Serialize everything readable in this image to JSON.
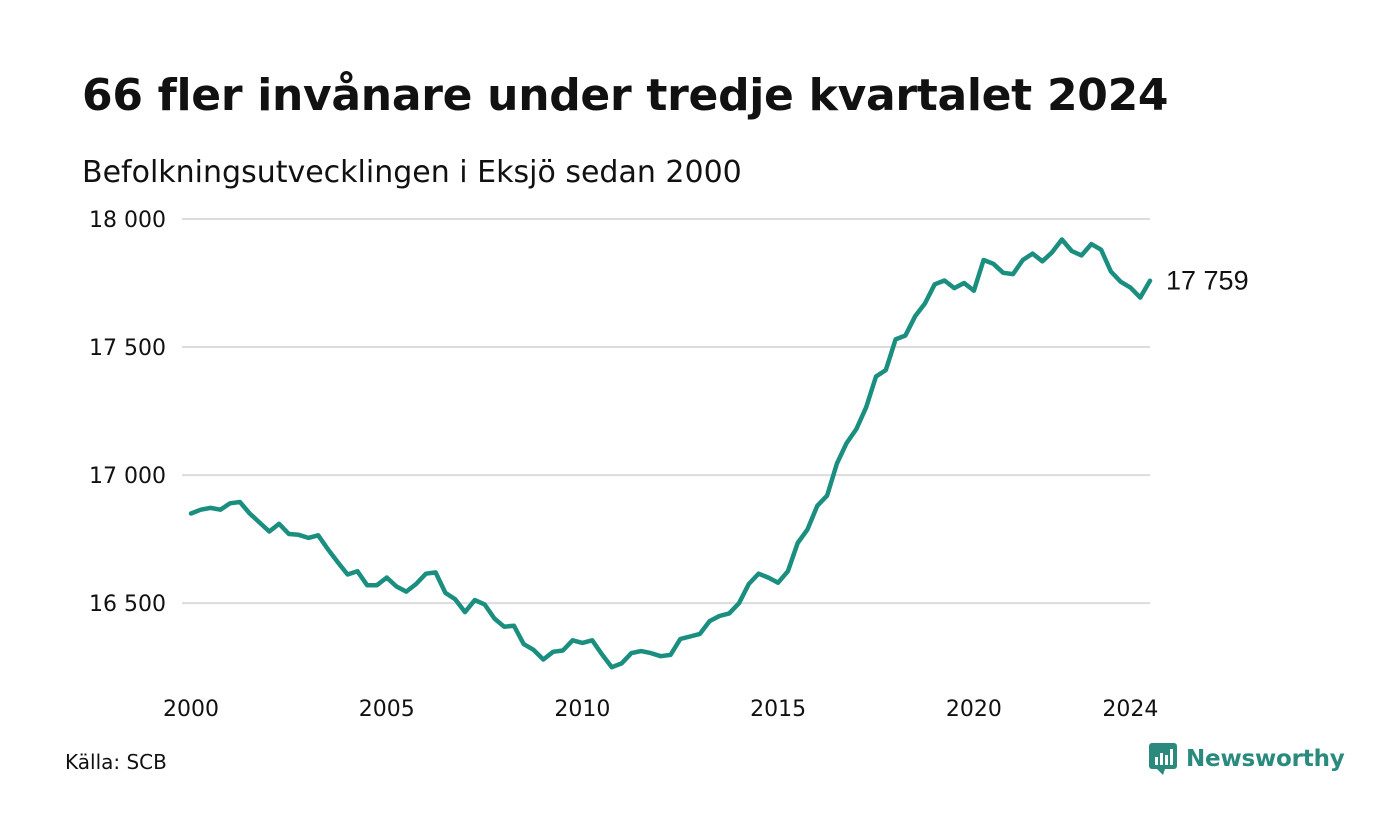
{
  "header": {
    "title": "66 fler invånare under tredje kvartalet 2024",
    "subtitle": "Befolkningsutvecklingen i Eksjö sedan 2000"
  },
  "footer": {
    "source": "Källa: SCB",
    "brand": "Newsworthy",
    "brand_icon": "newsworthy-logo-icon"
  },
  "colors": {
    "line": "#1a8f80",
    "grid": "#dcdcdc",
    "brand": "#2a8a7d",
    "text": "#111111"
  },
  "chart_data": {
    "type": "line",
    "ylim": [
      16200,
      18000
    ],
    "xlim": [
      2000,
      2024.5
    ],
    "y_ticks": [
      16500,
      17000,
      17500,
      18000
    ],
    "y_tick_labels": [
      "16 500",
      "17 000",
      "17 500",
      "18 000"
    ],
    "x_ticks": [
      2000,
      2005,
      2010,
      2015,
      2020,
      2024
    ],
    "x_tick_labels": [
      "2000",
      "2005",
      "2010",
      "2015",
      "2020",
      "2024"
    ],
    "grid": "horizontal",
    "end_label": "17 759",
    "series": [
      {
        "x": [
          2000.0,
          2000.25,
          2000.5,
          2000.75,
          2001.0,
          2001.25,
          2001.5,
          2001.75,
          2002.0,
          2002.25,
          2002.5,
          2002.75,
          2003.0,
          2003.25,
          2003.5,
          2003.75,
          2004.0,
          2004.25,
          2004.5,
          2004.75,
          2005.0,
          2005.25,
          2005.5,
          2005.75,
          2006.0,
          2006.25,
          2006.5,
          2006.75,
          2007.0,
          2007.25,
          2007.5,
          2007.75,
          2008.0,
          2008.25,
          2008.5,
          2008.75,
          2009.0,
          2009.25,
          2009.5,
          2009.75,
          2010.0,
          2010.25,
          2010.5,
          2010.75,
          2011.0,
          2011.25,
          2011.5,
          2011.75,
          2012.0,
          2012.25,
          2012.5,
          2012.75,
          2013.0,
          2013.25,
          2013.5,
          2013.75,
          2014.0,
          2014.25,
          2014.5,
          2014.75,
          2015.0,
          2015.25,
          2015.5,
          2015.75,
          2016.0,
          2016.25,
          2016.5,
          2016.75,
          2017.0,
          2017.25,
          2017.5,
          2017.75,
          2018.0,
          2018.25,
          2018.5,
          2018.75,
          2019.0,
          2019.25,
          2019.5,
          2019.75,
          2020.0,
          2020.25,
          2020.5,
          2020.75,
          2021.0,
          2021.25,
          2021.5,
          2021.75,
          2022.0,
          2022.25,
          2022.5,
          2022.75,
          2023.0,
          2023.25,
          2023.5,
          2023.75,
          2024.0,
          2024.25,
          2024.5
        ],
        "values": [
          16850,
          16865,
          16872,
          16865,
          16890,
          16895,
          16850,
          16815,
          16780,
          16810,
          16770,
          16767,
          16755,
          16765,
          16710,
          16660,
          16612,
          16625,
          16570,
          16570,
          16600,
          16565,
          16545,
          16575,
          16615,
          16620,
          16540,
          16515,
          16465,
          16512,
          16495,
          16440,
          16408,
          16412,
          16340,
          16318,
          16280,
          16310,
          16315,
          16355,
          16345,
          16355,
          16300,
          16250,
          16265,
          16305,
          16313,
          16305,
          16293,
          16298,
          16360,
          16370,
          16380,
          16430,
          16450,
          16460,
          16500,
          16575,
          16615,
          16600,
          16580,
          16625,
          16735,
          16788,
          16880,
          16920,
          17045,
          17125,
          17180,
          17265,
          17385,
          17410,
          17530,
          17545,
          17620,
          17670,
          17745,
          17760,
          17730,
          17750,
          17720,
          17840,
          17825,
          17790,
          17785,
          17840,
          17865,
          17835,
          17870,
          17920,
          17875,
          17858,
          17902,
          17880,
          17795,
          17755,
          17732,
          17693,
          17759
        ]
      }
    ]
  }
}
